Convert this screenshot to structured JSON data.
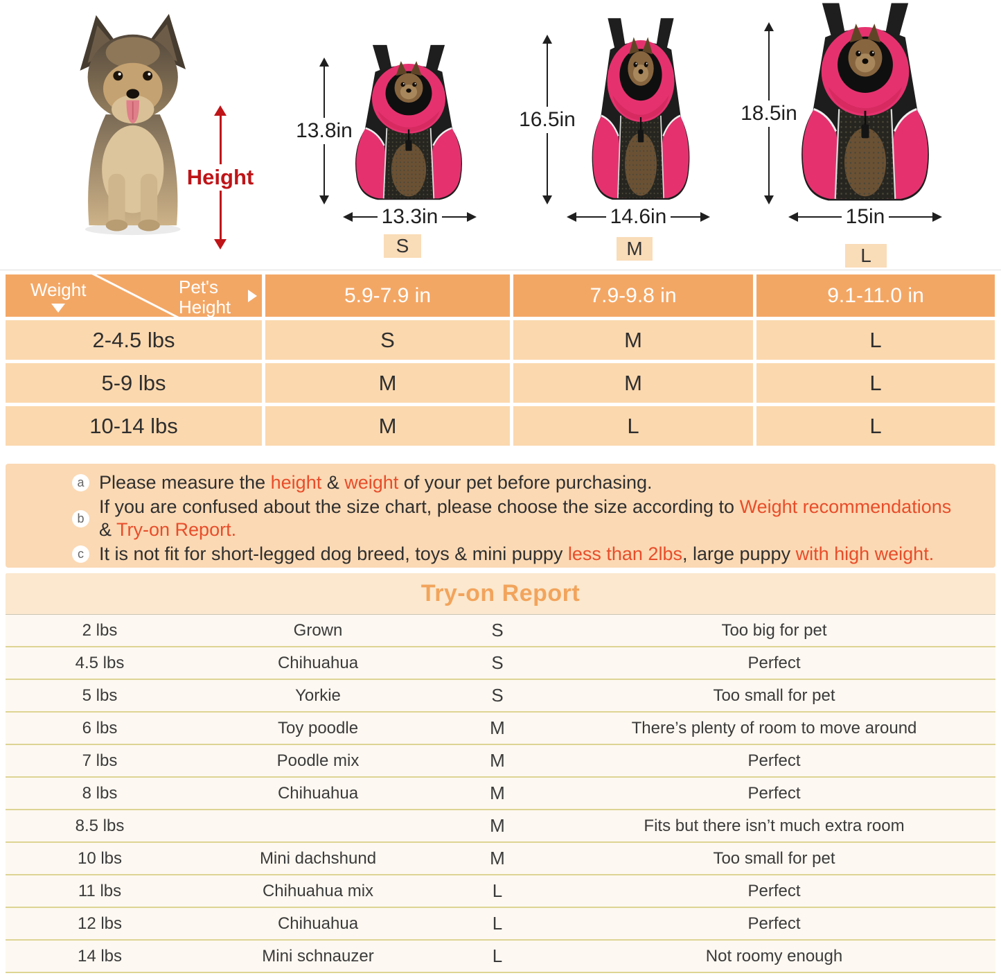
{
  "colors": {
    "header_orange": "#f3a765",
    "row_peach": "#fbd8ae",
    "badge_bg": "#f9dcb8",
    "notes_bg": "#fbd9b4",
    "red_text": "#e84d2a",
    "height_red": "#bf1418",
    "tryon_header_bg": "#fbe8ce",
    "tryon_title": "#f2a45c",
    "tryon_row_bg": "#fdf8f1",
    "separator_olive": "#ddd494",
    "dim_dark": "#1f1f1f",
    "bag_pink": "#e5326f",
    "bag_black": "#1d1d1d"
  },
  "hero": {
    "height_label": "Height",
    "bags": [
      {
        "size_label": "S",
        "height_label": "13.8in",
        "width_label": "13.3in"
      },
      {
        "size_label": "M",
        "height_label": "16.5in",
        "width_label": "14.6in"
      },
      {
        "size_label": "L",
        "height_label": "18.5in",
        "width_label": "15in"
      }
    ]
  },
  "size_chart": {
    "corner_row_label": "Weight",
    "corner_col_label": "Pet's\nHeight",
    "columns": [
      "5.9-7.9 in",
      "7.9-9.8 in",
      "9.1-11.0 in"
    ],
    "rows": [
      {
        "weight": "2-4.5 lbs",
        "sizes": [
          "S",
          "M",
          "L"
        ]
      },
      {
        "weight": "5-9 lbs",
        "sizes": [
          "M",
          "M",
          "L"
        ]
      },
      {
        "weight": "10-14 lbs",
        "sizes": [
          "M",
          "L",
          "L"
        ]
      }
    ]
  },
  "notes": [
    {
      "bullet": "a",
      "lines": [
        [
          {
            "t": "Please measure the "
          },
          {
            "t": "height",
            "red": true
          },
          {
            "t": " & "
          },
          {
            "t": "weight",
            "red": true
          },
          {
            "t": " of your pet before purchasing."
          }
        ]
      ]
    },
    {
      "bullet": "b",
      "lines": [
        [
          {
            "t": "If you are confused about the size chart, please choose the size according to "
          },
          {
            "t": "Weight recommendations",
            "red": true
          }
        ],
        [
          {
            "t": "& "
          },
          {
            "t": "Try-on Report.",
            "red": true
          }
        ]
      ]
    },
    {
      "bullet": "c",
      "lines": [
        [
          {
            "t": "It is not fit for short-legged dog breed, toys & mini puppy "
          },
          {
            "t": "less than 2lbs",
            "red": true
          },
          {
            "t": ", large puppy "
          },
          {
            "t": "with high weight.",
            "red": true
          }
        ]
      ]
    }
  ],
  "try_on": {
    "title": "Try-on Report",
    "rows": [
      {
        "weight": "2 lbs",
        "breed": "Grown",
        "size": "S",
        "verdict": "Too big for pet"
      },
      {
        "weight": "4.5 lbs",
        "breed": "Chihuahua",
        "size": "S",
        "verdict": "Perfect"
      },
      {
        "weight": "5 lbs",
        "breed": "Yorkie",
        "size": "S",
        "verdict": "Too small for pet"
      },
      {
        "weight": "6 lbs",
        "breed": "Toy poodle",
        "size": "M",
        "verdict": "There’s plenty of room to move around"
      },
      {
        "weight": "7 lbs",
        "breed": "Poodle mix",
        "size": "M",
        "verdict": "Perfect"
      },
      {
        "weight": "8 lbs",
        "breed": "Chihuahua",
        "size": "M",
        "verdict": "Perfect"
      },
      {
        "weight": "8.5 lbs",
        "breed": "",
        "size": "M",
        "verdict": "Fits but there isn’t much extra room"
      },
      {
        "weight": "10 lbs",
        "breed": "Mini dachshund",
        "size": "M",
        "verdict": "Too small for pet"
      },
      {
        "weight": "11 lbs",
        "breed": "Chihuahua mix",
        "size": "L",
        "verdict": "Perfect"
      },
      {
        "weight": "12 lbs",
        "breed": "Chihuahua",
        "size": "L",
        "verdict": "Perfect"
      },
      {
        "weight": "14 lbs",
        "breed": "Mini schnauzer",
        "size": "L",
        "verdict": "Not roomy enough"
      }
    ]
  }
}
